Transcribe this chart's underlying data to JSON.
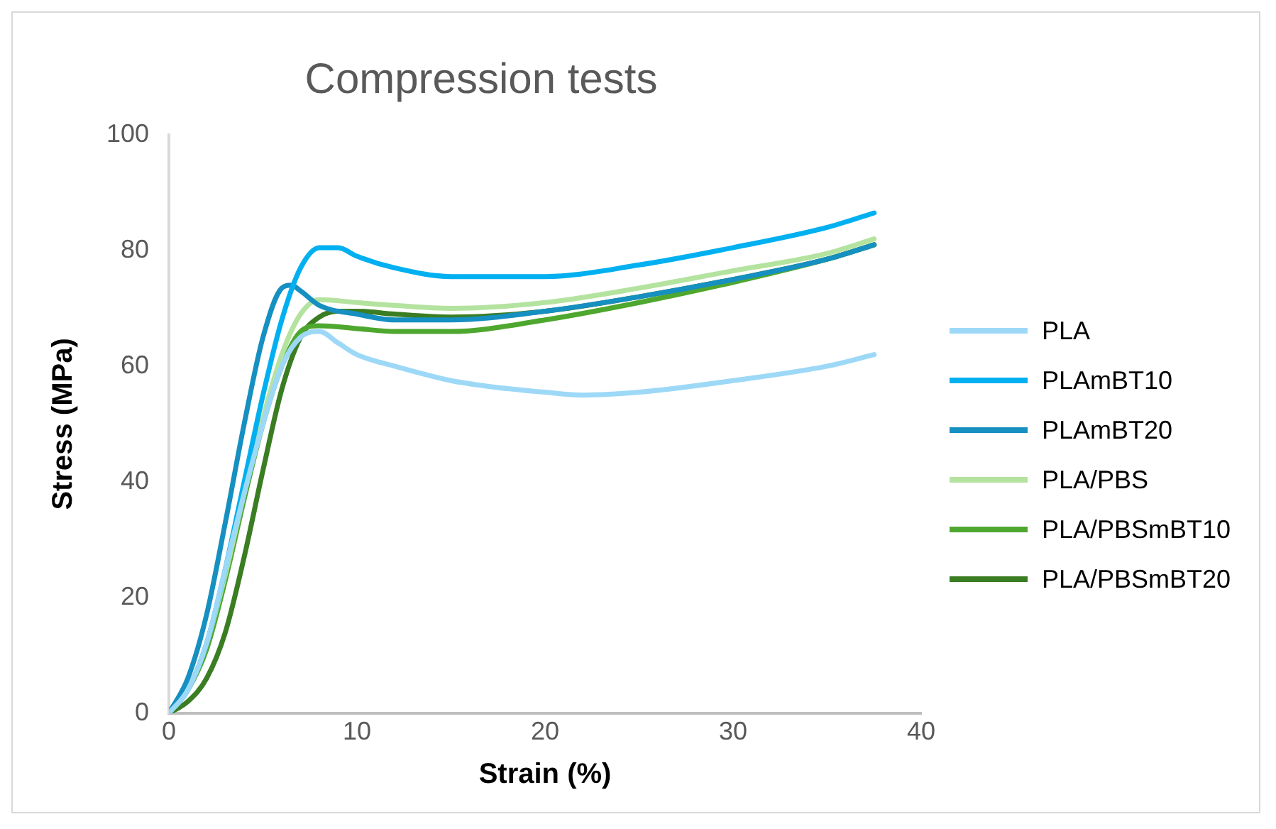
{
  "chart_data": {
    "type": "line",
    "title": "Compression tests",
    "xlabel": "Strain (%)",
    "ylabel": "Stress (MPa)",
    "xlim": [
      0,
      40
    ],
    "ylim": [
      0,
      100
    ],
    "xticks": [
      0,
      10,
      20,
      30,
      40
    ],
    "yticks": [
      0,
      20,
      40,
      60,
      80,
      100
    ],
    "grid": false,
    "legend": "right",
    "marker": "none",
    "line_style": "solid",
    "series": [
      {
        "name": "PLA",
        "color": "#9dd9f7",
        "x": [
          0,
          1,
          2,
          3,
          4,
          5,
          6,
          7,
          8,
          9,
          10,
          12,
          15,
          17,
          20,
          22,
          25,
          30,
          35,
          37.5
        ],
        "values": [
          0,
          4,
          12,
          25,
          38,
          50,
          60,
          65,
          66,
          64,
          62,
          60,
          57.5,
          56.5,
          55.5,
          55,
          55.5,
          57.5,
          60,
          62
        ]
      },
      {
        "name": "PLAmBT10",
        "color": "#00b0f0",
        "x": [
          0,
          1,
          2,
          3,
          4,
          5,
          6,
          7,
          8,
          9,
          10,
          12,
          15,
          20,
          25,
          30,
          35,
          37.5
        ],
        "values": [
          0,
          4,
          12,
          25,
          40,
          55,
          68,
          77,
          80.5,
          80.5,
          79,
          77,
          75.5,
          75.5,
          77.5,
          80.5,
          84,
          86.5
        ]
      },
      {
        "name": "PLAmBT20",
        "color": "#168fc1",
        "x": [
          0,
          1,
          2,
          3,
          4,
          5,
          6,
          6.5,
          7,
          8,
          10,
          12,
          15,
          20,
          25,
          30,
          35,
          37.5
        ],
        "values": [
          0,
          6,
          17,
          33,
          50,
          65,
          73.5,
          74,
          73,
          70.5,
          69,
          68,
          68,
          69.5,
          72,
          75,
          78.5,
          81
        ]
      },
      {
        "name": "PLA/PBS",
        "color": "#b4e3a0",
        "x": [
          0,
          1,
          2,
          3,
          4,
          5,
          6,
          7,
          8,
          10,
          12,
          15,
          20,
          25,
          30,
          35,
          37.5
        ],
        "values": [
          0,
          4,
          12,
          24,
          38,
          51,
          62,
          69,
          71.5,
          71,
          70.5,
          70,
          71,
          73.5,
          76.5,
          79.5,
          82
        ]
      },
      {
        "name": "PLA/PBSmBT10",
        "color": "#4ea72e",
        "x": [
          0,
          1,
          2,
          3,
          4,
          5,
          6,
          7,
          8,
          10,
          12,
          15,
          20,
          25,
          30,
          35,
          37.5
        ],
        "values": [
          0,
          4,
          11,
          23,
          37,
          50,
          60,
          66,
          67,
          66.5,
          66,
          66,
          68,
          71,
          74.5,
          78.5,
          81
        ]
      },
      {
        "name": "PLA/PBSmBT20",
        "color": "#3a7d22",
        "x": [
          0,
          1,
          2,
          3,
          4,
          5,
          6,
          7,
          8,
          9,
          10,
          12,
          15,
          20,
          25,
          30,
          35,
          37.5
        ],
        "values": [
          0,
          2,
          6,
          14,
          27,
          42,
          56,
          65,
          68.5,
          69.5,
          69.5,
          69,
          68.5,
          69.5,
          72,
          75,
          78.5,
          81
        ]
      }
    ]
  }
}
